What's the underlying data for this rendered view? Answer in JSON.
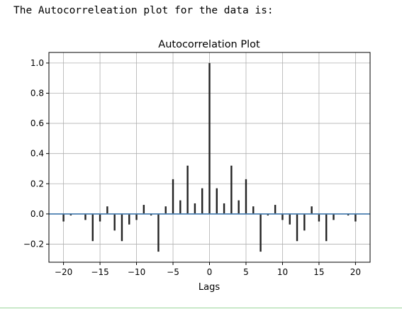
{
  "intro_text": "The Autocorreleation plot for the data is:",
  "chart_data": {
    "type": "bar",
    "title": "Autocorrelation Plot",
    "xlabel": "Lags",
    "ylabel": "",
    "xlim": [
      -22,
      22
    ],
    "ylim": [
      -0.32,
      1.07
    ],
    "grid": true,
    "xticks": [
      -20,
      -15,
      -10,
      -5,
      0,
      5,
      10,
      15,
      20
    ],
    "xtick_labels": [
      "−20",
      "−15",
      "−10",
      "−5",
      "0",
      "5",
      "10",
      "15",
      "20"
    ],
    "yticks": [
      -0.2,
      0.0,
      0.2,
      0.4,
      0.6,
      0.8,
      1.0
    ],
    "ytick_labels": [
      "−0.2",
      "0.0",
      "0.2",
      "0.4",
      "0.6",
      "0.8",
      "1.0"
    ],
    "x": [
      -20,
      -19,
      -18,
      -17,
      -16,
      -15,
      -14,
      -13,
      -12,
      -11,
      -10,
      -9,
      -8,
      -7,
      -6,
      -5,
      -4,
      -3,
      -2,
      -1,
      0,
      1,
      2,
      3,
      4,
      5,
      6,
      7,
      8,
      9,
      10,
      11,
      12,
      13,
      14,
      15,
      16,
      17,
      18,
      19,
      20
    ],
    "values": [
      -0.05,
      -0.01,
      0.0,
      -0.04,
      -0.18,
      -0.05,
      0.05,
      -0.11,
      -0.18,
      -0.07,
      -0.04,
      0.06,
      -0.01,
      -0.25,
      0.05,
      0.23,
      0.09,
      0.32,
      0.07,
      0.17,
      1.0,
      0.17,
      0.07,
      0.32,
      0.09,
      0.23,
      0.05,
      -0.25,
      -0.01,
      0.06,
      -0.04,
      -0.07,
      -0.18,
      -0.11,
      0.05,
      -0.05,
      -0.18,
      -0.04,
      0.0,
      -0.01,
      -0.05
    ],
    "colors": {
      "bar": "#222222",
      "baseline": "#4a7fb0",
      "grid": "#b0b0b0",
      "axis": "#000000"
    }
  }
}
